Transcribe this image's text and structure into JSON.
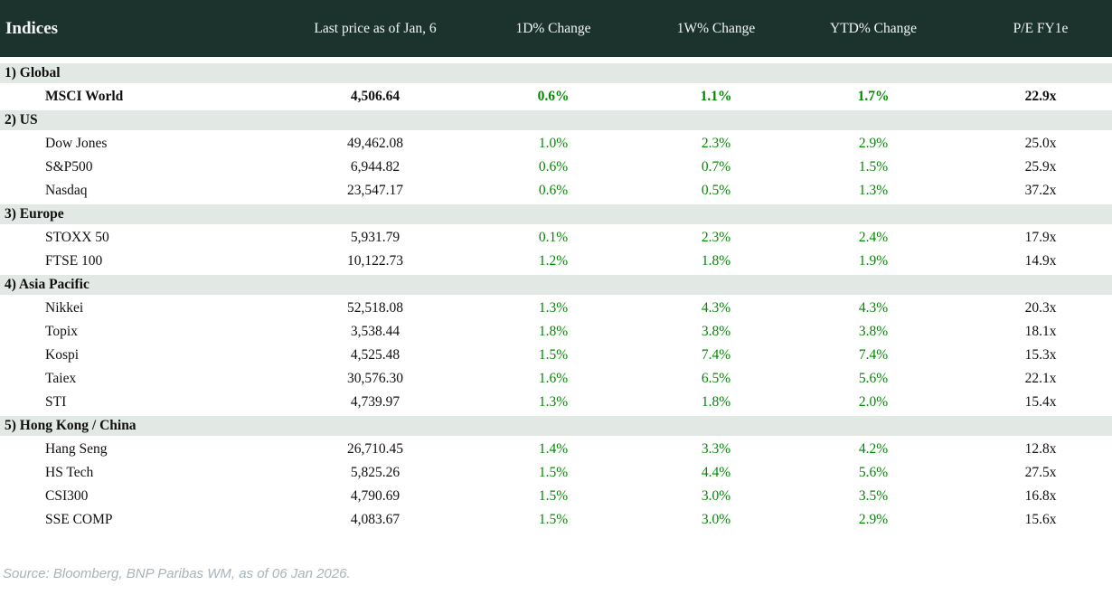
{
  "chart_data": {
    "type": "table",
    "title": "Indices",
    "columns": [
      "Indices",
      "Last price as of Jan, 6",
      "1D% Change",
      "1W% Change",
      "YTD% Change",
      "P/E FY1e"
    ],
    "sections": [
      {
        "label": "1) Global",
        "rows": [
          {
            "name": "MSCI World",
            "price": "4,506.64",
            "d1": "0.6%",
            "w1": "1.1%",
            "ytd": "1.7%",
            "pe": "22.9x",
            "emphasis": true
          }
        ]
      },
      {
        "label": "2) US",
        "rows": [
          {
            "name": "Dow Jones",
            "price": "49,462.08",
            "d1": "1.0%",
            "w1": "2.3%",
            "ytd": "2.9%",
            "pe": "25.0x",
            "emphasis": false
          },
          {
            "name": "S&P500",
            "price": "6,944.82",
            "d1": "0.6%",
            "w1": "0.7%",
            "ytd": "1.5%",
            "pe": "25.9x",
            "emphasis": false
          },
          {
            "name": "Nasdaq",
            "price": "23,547.17",
            "d1": "0.6%",
            "w1": "0.5%",
            "ytd": "1.3%",
            "pe": "37.2x",
            "emphasis": false
          }
        ]
      },
      {
        "label": "3) Europe",
        "rows": [
          {
            "name": "STOXX 50",
            "price": "5,931.79",
            "d1": "0.1%",
            "w1": "2.3%",
            "ytd": "2.4%",
            "pe": "17.9x",
            "emphasis": false
          },
          {
            "name": "FTSE 100",
            "price": "10,122.73",
            "d1": "1.2%",
            "w1": "1.8%",
            "ytd": "1.9%",
            "pe": "14.9x",
            "emphasis": false
          }
        ]
      },
      {
        "label": "4) Asia Pacific",
        "rows": [
          {
            "name": "Nikkei",
            "price": "52,518.08",
            "d1": "1.3%",
            "w1": "4.3%",
            "ytd": "4.3%",
            "pe": "20.3x",
            "emphasis": false
          },
          {
            "name": "Topix",
            "price": "3,538.44",
            "d1": "1.8%",
            "w1": "3.8%",
            "ytd": "3.8%",
            "pe": "18.1x",
            "emphasis": false
          },
          {
            "name": "Kospi",
            "price": "4,525.48",
            "d1": "1.5%",
            "w1": "7.4%",
            "ytd": "7.4%",
            "pe": "15.3x",
            "emphasis": false
          },
          {
            "name": "Taiex",
            "price": "30,576.30",
            "d1": "1.6%",
            "w1": "6.5%",
            "ytd": "5.6%",
            "pe": "22.1x",
            "emphasis": false
          },
          {
            "name": "STI",
            "price": "4,739.97",
            "d1": "1.3%",
            "w1": "1.8%",
            "ytd": "2.0%",
            "pe": "15.4x",
            "emphasis": false
          }
        ]
      },
      {
        "label": "5) Hong Kong / China",
        "rows": [
          {
            "name": "Hang Seng",
            "price": "26,710.45",
            "d1": "1.4%",
            "w1": "3.3%",
            "ytd": "4.2%",
            "pe": "12.8x",
            "emphasis": false
          },
          {
            "name": "HS Tech",
            "price": "5,825.26",
            "d1": "1.5%",
            "w1": "4.4%",
            "ytd": "5.6%",
            "pe": "27.5x",
            "emphasis": false
          },
          {
            "name": "CSI300",
            "price": "4,790.69",
            "d1": "1.5%",
            "w1": "3.0%",
            "ytd": "3.5%",
            "pe": "16.8x",
            "emphasis": false
          },
          {
            "name": "SSE COMP",
            "price": "4,083.67",
            "d1": "1.5%",
            "w1": "3.0%",
            "ytd": "2.9%",
            "pe": "15.6x",
            "emphasis": false
          }
        ]
      }
    ],
    "source_note": "Source: Bloomberg, BNP Paribas WM, as of 06 Jan 2026."
  },
  "colors": {
    "header_bg": "#1b322d",
    "header_text": "#f4f6f5",
    "section_bg": "#e2e8e4",
    "body_text": "#101010",
    "positive_change": "#008a00",
    "source_text": "#a9b3ba"
  }
}
